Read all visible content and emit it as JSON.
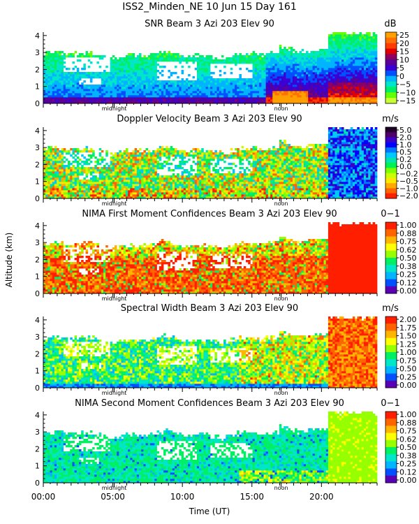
{
  "figure": {
    "title": "ISS2_Minden_NE  10 Jun 15 Day 161",
    "y_axis_label": "Altitude (km)",
    "x_axis_label": "Time (UT)",
    "x_tick_labels": [
      "00:00",
      "05:00",
      "10:00",
      "15:00",
      "20:00"
    ],
    "marker_midnight": "midnight",
    "marker_noon": "noon"
  },
  "chart_data": [
    {
      "type": "heatmap",
      "title": "SNR Beam 3 Azi 203 Elev 90",
      "unit": "dB",
      "ylim": [
        0,
        4.2
      ],
      "xlim_hours": [
        0,
        24
      ],
      "y_ticks": [
        "0",
        "1",
        "2",
        "3",
        "4"
      ],
      "colorbar_labels": [
        "25",
        "20",
        "15",
        "10",
        "5",
        "0",
        "−5",
        "−10",
        "−15"
      ],
      "colorbar_colors": [
        "#ffa000",
        "#ff7000",
        "#ff3c00",
        "#e10000",
        "#8c0064",
        "#5a0096",
        "#3c00d2",
        "#0050ff",
        "#00b4ff",
        "#00e6c8",
        "#00f064",
        "#64ff00",
        "#c8ff32"
      ],
      "pattern": "snr"
    },
    {
      "type": "heatmap",
      "title": "Doppler Velocity Beam 3 Azi 203 Elev 90",
      "unit": "m/s",
      "ylim": [
        0,
        4.2
      ],
      "xlim_hours": [
        0,
        24
      ],
      "y_ticks": [
        "0",
        "1",
        "2",
        "3",
        "4"
      ],
      "colorbar_labels": [
        "5.0",
        "2.0",
        "1.0",
        "0.5",
        "0.2",
        "0.0",
        "−0.2",
        "−0.5",
        "−1.0",
        "−2.0"
      ],
      "colorbar_colors": [
        "#1e0028",
        "#50006e",
        "#3c00c8",
        "#0000ff",
        "#0078ff",
        "#00c8ff",
        "#00e6aa",
        "#00f050",
        "#78ff00",
        "#c8ff00",
        "#ffe600",
        "#ffaa00",
        "#ff6400",
        "#ff1e00"
      ],
      "pattern": "doppler"
    },
    {
      "type": "heatmap",
      "title": "NIMA First Moment Confidences Beam 3 Azi 203 Elev 90",
      "unit": "0−1",
      "ylim": [
        0,
        4.2
      ],
      "xlim_hours": [
        0,
        24
      ],
      "y_ticks": [
        "0",
        "1",
        "2",
        "3",
        "4"
      ],
      "colorbar_labels": [
        "1.00",
        "0.88",
        "0.75",
        "0.62",
        "0.50",
        "0.38",
        "0.25",
        "0.12",
        "0.00"
      ],
      "colorbar_colors": [
        "#ff1e00",
        "#ff6400",
        "#ffb400",
        "#ffff00",
        "#96ff00",
        "#00f064",
        "#00e6c8",
        "#00b4ff",
        "#0050ff",
        "#5a00b4"
      ],
      "pattern": "conf1"
    },
    {
      "type": "heatmap",
      "title": "Spectral Width Beam 3 Azi 203 Elev 90",
      "unit": "m/s",
      "ylim": [
        0,
        4.2
      ],
      "xlim_hours": [
        0,
        24
      ],
      "y_ticks": [
        "0",
        "1",
        "2",
        "3",
        "4"
      ],
      "colorbar_labels": [
        "2.00",
        "1.75",
        "1.50",
        "1.25",
        "1.00",
        "0.75",
        "0.50",
        "0.25",
        "0.00"
      ],
      "colorbar_colors": [
        "#ff1e00",
        "#ff6400",
        "#ffb400",
        "#ffff00",
        "#96ff00",
        "#00f064",
        "#00e6c8",
        "#00b4ff",
        "#0050ff",
        "#5a00b4"
      ],
      "pattern": "width"
    },
    {
      "type": "heatmap",
      "title": "NIMA Second Moment Confidences Beam 3 Azi 203 Elev 90",
      "unit": "0−1",
      "ylim": [
        0,
        4.2
      ],
      "xlim_hours": [
        0,
        24
      ],
      "y_ticks": [
        "0",
        "1",
        "2",
        "3",
        "4"
      ],
      "colorbar_labels": [
        "1.00",
        "0.88",
        "0.75",
        "0.62",
        "0.50",
        "0.38",
        "0.25",
        "0.12",
        "0.00"
      ],
      "colorbar_colors": [
        "#ff1e00",
        "#ff6400",
        "#ffb400",
        "#ffff00",
        "#96ff00",
        "#00f064",
        "#00e6c8",
        "#00b4ff",
        "#0050ff",
        "#5a00b4"
      ],
      "pattern": "conf2"
    }
  ]
}
